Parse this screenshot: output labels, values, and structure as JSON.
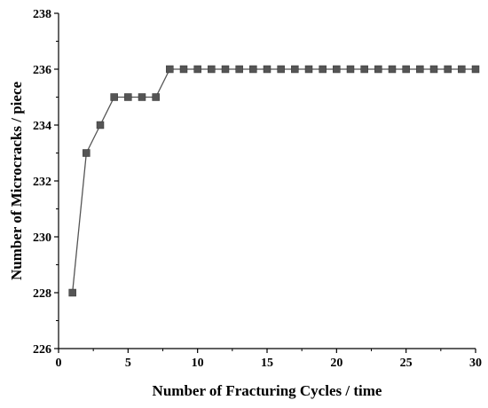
{
  "chart_data": {
    "type": "line",
    "title": "",
    "xlabel": "Number of Fracturing Cycles / time",
    "ylabel": "Number of Microcracks / piece",
    "xlim": [
      0,
      30
    ],
    "ylim": [
      226,
      238
    ],
    "xticks": [
      0,
      5,
      10,
      15,
      20,
      25,
      30
    ],
    "yticks": [
      226,
      228,
      230,
      232,
      234,
      236,
      238
    ],
    "xtick_labels": [
      "0",
      "5",
      "10",
      "15",
      "20",
      "25",
      "30"
    ],
    "ytick_labels": [
      "226",
      "228",
      "230",
      "232",
      "234",
      "236",
      "238"
    ],
    "grid": false,
    "legend": "none",
    "marker": "square",
    "color": "#555555",
    "series": [
      {
        "x": [
          1,
          2,
          3,
          4,
          5,
          6,
          7,
          8,
          9,
          10,
          11,
          12,
          13,
          14,
          15,
          16,
          17,
          18,
          19,
          20,
          21,
          22,
          23,
          24,
          25,
          26,
          27,
          28,
          29,
          30
        ],
        "y": [
          228,
          233,
          234,
          235,
          235,
          235,
          235,
          236,
          236,
          236,
          236,
          236,
          236,
          236,
          236,
          236,
          236,
          236,
          236,
          236,
          236,
          236,
          236,
          236,
          236,
          236,
          236,
          236,
          236,
          236
        ]
      }
    ]
  }
}
